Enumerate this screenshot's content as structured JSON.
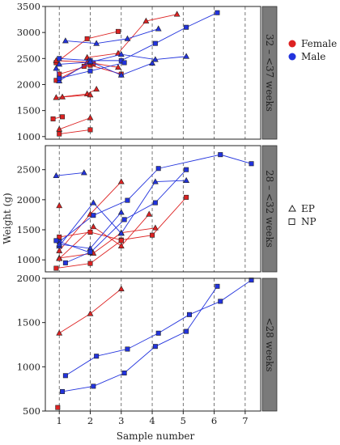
{
  "chart_data": {
    "type": "line",
    "xlabel": "Sample number",
    "ylabel": "Weight (g)",
    "x_ticks": [
      1,
      2,
      3,
      4,
      5,
      6,
      7
    ],
    "colors": {
      "Female": "#dd2222",
      "Male": "#2233dd"
    },
    "legend": {
      "groups": [
        {
          "label": "Female",
          "marker": "filled-circle",
          "color": "#dd2222"
        },
        {
          "label": "Male",
          "marker": "filled-circle",
          "color": "#2233dd"
        }
      ],
      "types": [
        {
          "label": "EP",
          "marker": "triangle"
        },
        {
          "label": "NP",
          "marker": "square"
        }
      ]
    },
    "panels": [
      {
        "strip": "32 – <37 weeks",
        "ylim": [
          950,
          3500
        ],
        "yticks": [
          1000,
          1500,
          2000,
          2500,
          3000,
          3500
        ],
        "series": [
          {
            "group": "Female",
            "marker": "triangle",
            "points": [
              [
                1.9,
                2520
              ],
              [
                2.9,
                2600
              ],
              [
                3.8,
                3220
              ],
              [
                4.8,
                3350
              ]
            ]
          },
          {
            "group": "Female",
            "marker": "square",
            "points": [
              [
                0.9,
                2420
              ],
              [
                1.9,
                2880
              ],
              [
                2.9,
                3020
              ]
            ]
          },
          {
            "group": "Female",
            "marker": "triangle",
            "points": [
              [
                0.9,
                2460
              ],
              [
                1.9,
                2430
              ],
              [
                2.9,
                2330
              ]
            ]
          },
          {
            "group": "Female",
            "marker": "square",
            "points": [
              [
                1.0,
                2200
              ],
              [
                2.0,
                2370
              ],
              [
                3.0,
                2200
              ]
            ]
          },
          {
            "group": "Female",
            "marker": "square",
            "points": [
              [
                0.9,
                2080
              ],
              [
                1.8,
                2350
              ],
              [
                2.1,
                2400
              ]
            ]
          },
          {
            "group": "Female",
            "marker": "triangle",
            "points": [
              [
                0.9,
                1750
              ],
              [
                1.9,
                1820
              ],
              [
                2.2,
                1910
              ]
            ]
          },
          {
            "group": "Female",
            "marker": "triangle",
            "points": [
              [
                1.1,
                1760
              ],
              [
                2.0,
                1800
              ]
            ]
          },
          {
            "group": "Female",
            "marker": "square",
            "points": [
              [
                0.8,
                1340
              ],
              [
                1.1,
                1380
              ]
            ]
          },
          {
            "group": "Female",
            "marker": "triangle",
            "points": [
              [
                1.0,
                1140
              ],
              [
                2.0,
                1360
              ]
            ]
          },
          {
            "group": "Female",
            "marker": "square",
            "points": [
              [
                1.0,
                1050
              ],
              [
                2.0,
                1130
              ]
            ]
          },
          {
            "group": "Male",
            "marker": "triangle",
            "points": [
              [
                1.2,
                2840
              ],
              [
                2.2,
                2790
              ],
              [
                3.2,
                2880
              ],
              [
                4.2,
                3070
              ]
            ]
          },
          {
            "group": "Male",
            "marker": "square",
            "points": [
              [
                1.0,
                2500
              ],
              [
                2.0,
                2460
              ],
              [
                3.0,
                2460
              ],
              [
                4.1,
                2790
              ],
              [
                5.1,
                3100
              ],
              [
                6.1,
                3380
              ]
            ]
          },
          {
            "group": "Male",
            "marker": "triangle",
            "points": [
              [
                1.0,
                2390
              ],
              [
                2.0,
                2430
              ],
              [
                3.0,
                2580
              ],
              [
                4.1,
                2480
              ],
              [
                5.1,
                2540
              ]
            ]
          },
          {
            "group": "Male",
            "marker": "triangle",
            "points": [
              [
                0.9,
                2310
              ],
              [
                1.0,
                2070
              ],
              [
                2.0,
                2440
              ],
              [
                3.0,
                2180
              ],
              [
                4.0,
                2410
              ]
            ]
          },
          {
            "group": "Male",
            "marker": "square",
            "points": [
              [
                1.0,
                2120
              ],
              [
                2.0,
                2260
              ],
              [
                3.1,
                2420
              ]
            ]
          }
        ]
      },
      {
        "strip": "28 – <32 weeks",
        "ylim": [
          800,
          2900
        ],
        "yticks": [
          1000,
          1500,
          2000,
          2500
        ],
        "series": [
          {
            "group": "Female",
            "marker": "triangle",
            "points": [
              [
                1.0,
                1150
              ],
              [
                2.0,
                1760
              ],
              [
                3.0,
                2300
              ]
            ]
          },
          {
            "group": "Female",
            "marker": "triangle",
            "points": [
              [
                1.0,
                1900
              ]
            ]
          },
          {
            "group": "Female",
            "marker": "square",
            "points": [
              [
                1.0,
                1380
              ],
              [
                2.0,
                1460
              ],
              [
                3.0,
                1330
              ],
              [
                4.0,
                1410
              ],
              [
                5.1,
                2040
              ]
            ]
          },
          {
            "group": "Female",
            "marker": "triangle",
            "points": [
              [
                1.0,
                1030
              ],
              [
                2.1,
                1110
              ],
              [
                3.0,
                1450
              ],
              [
                4.1,
                1530
              ]
            ]
          },
          {
            "group": "Female",
            "marker": "triangle",
            "points": [
              [
                1.0,
                1020
              ],
              [
                2.1,
                1550
              ],
              [
                3.0,
                1230
              ],
              [
                3.9,
                1760
              ]
            ]
          },
          {
            "group": "Female",
            "marker": "square",
            "points": [
              [
                0.9,
                860
              ],
              [
                2.0,
                940
              ],
              [
                3.0,
                1320
              ]
            ]
          },
          {
            "group": "Male",
            "marker": "triangle",
            "points": [
              [
                0.9,
                2400
              ],
              [
                1.8,
                2450
              ]
            ]
          },
          {
            "group": "Male",
            "marker": "square",
            "points": [
              [
                1.0,
                1300
              ],
              [
                2.1,
                1740
              ],
              [
                3.2,
                1990
              ],
              [
                4.2,
                2520
              ],
              [
                6.2,
                2750
              ],
              [
                7.2,
                2600
              ]
            ]
          },
          {
            "group": "Male",
            "marker": "triangle",
            "points": [
              [
                1.0,
                1230
              ],
              [
                2.1,
                1950
              ],
              [
                3.0,
                1440
              ],
              [
                4.1,
                2300
              ],
              [
                5.1,
                2320
              ]
            ]
          },
          {
            "group": "Male",
            "marker": "square",
            "points": [
              [
                0.9,
                1320
              ],
              [
                2.0,
                1120
              ],
              [
                3.1,
                1670
              ],
              [
                4.1,
                1950
              ],
              [
                5.1,
                2500
              ]
            ]
          },
          {
            "group": "Male",
            "marker": "triangle",
            "points": [
              [
                1.0,
                1260
              ],
              [
                2.0,
                1190
              ],
              [
                3.0,
                1790
              ]
            ]
          },
          {
            "group": "Male",
            "marker": "square",
            "points": [
              [
                1.2,
                950
              ],
              [
                2.0,
                1130
              ]
            ]
          }
        ]
      },
      {
        "strip": "<28 weeks",
        "ylim": [
          500,
          2000
        ],
        "yticks": [
          500,
          1000,
          1500,
          2000
        ],
        "series": [
          {
            "group": "Female",
            "marker": "triangle",
            "points": [
              [
                1.0,
                1380
              ],
              [
                2.0,
                1600
              ],
              [
                3.0,
                1880
              ]
            ]
          },
          {
            "group": "Female",
            "marker": "square",
            "points": [
              [
                0.95,
                540
              ]
            ]
          },
          {
            "group": "Male",
            "marker": "square",
            "points": [
              [
                1.2,
                900
              ],
              [
                2.2,
                1120
              ],
              [
                3.2,
                1200
              ],
              [
                4.2,
                1380
              ],
              [
                5.2,
                1590
              ],
              [
                6.2,
                1740
              ],
              [
                7.2,
                1980
              ]
            ]
          },
          {
            "group": "Male",
            "marker": "square",
            "points": [
              [
                1.1,
                720
              ],
              [
                2.1,
                780
              ],
              [
                3.1,
                930
              ],
              [
                4.1,
                1230
              ],
              [
                5.1,
                1400
              ],
              [
                6.1,
                1910
              ]
            ]
          }
        ]
      }
    ]
  }
}
